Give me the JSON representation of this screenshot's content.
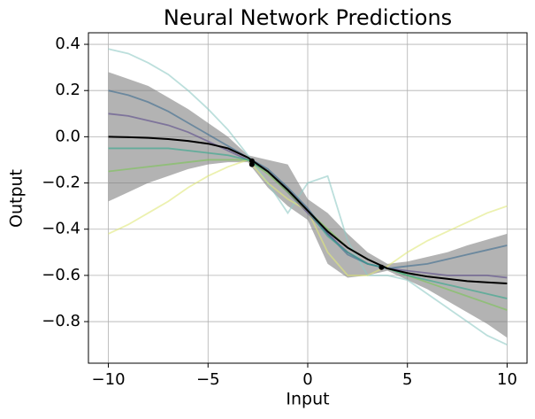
{
  "chart_data": {
    "type": "line",
    "title": "Neural Network Predictions",
    "x_label": "Input",
    "y_label": "Output",
    "x": [
      -10,
      -9,
      -8,
      -7,
      -6,
      -5,
      -4,
      -3,
      -2,
      -1,
      0,
      1,
      2,
      3,
      4,
      5,
      6,
      7,
      8,
      9,
      10
    ],
    "band": {
      "color": "#808080",
      "upper": [
        0.28,
        0.25,
        0.22,
        0.17,
        0.12,
        0.06,
        0.0,
        -0.08,
        -0.1,
        -0.12,
        -0.27,
        -0.33,
        -0.42,
        -0.5,
        -0.55,
        -0.54,
        -0.52,
        -0.5,
        -0.47,
        -0.445,
        -0.42
      ],
      "lower": [
        -0.28,
        -0.24,
        -0.2,
        -0.17,
        -0.14,
        -0.12,
        -0.11,
        -0.11,
        -0.22,
        -0.3,
        -0.36,
        -0.55,
        -0.61,
        -0.6,
        -0.58,
        -0.62,
        -0.66,
        -0.71,
        -0.76,
        -0.81,
        -0.87
      ]
    },
    "series": [
      {
        "color": "#8fc9c5",
        "values": [
          0.38,
          0.36,
          0.32,
          0.27,
          0.2,
          0.12,
          0.03,
          -0.08,
          -0.2,
          -0.33,
          -0.2,
          -0.17,
          -0.45,
          -0.6,
          -0.6,
          -0.62,
          -0.68,
          -0.74,
          -0.8,
          -0.86,
          -0.9
        ]
      },
      {
        "color": "#e0e87a",
        "values": [
          -0.42,
          -0.38,
          -0.33,
          -0.28,
          -0.22,
          -0.17,
          -0.13,
          -0.1,
          -0.2,
          -0.27,
          -0.32,
          -0.5,
          -0.6,
          -0.6,
          -0.56,
          -0.5,
          -0.45,
          -0.41,
          -0.37,
          -0.33,
          -0.3
        ]
      },
      {
        "color": "#5a4a8a",
        "values": [
          0.1,
          0.09,
          0.07,
          0.05,
          0.02,
          -0.02,
          -0.06,
          -0.1,
          -0.15,
          -0.24,
          -0.33,
          -0.42,
          -0.5,
          -0.55,
          -0.57,
          -0.58,
          -0.59,
          -0.6,
          -0.6,
          -0.6,
          -0.61
        ]
      },
      {
        "color": "#7ac453",
        "values": [
          -0.15,
          -0.14,
          -0.13,
          -0.12,
          -0.11,
          -0.1,
          -0.1,
          -0.1,
          -0.16,
          -0.24,
          -0.32,
          -0.4,
          -0.48,
          -0.53,
          -0.57,
          -0.6,
          -0.63,
          -0.66,
          -0.69,
          -0.72,
          -0.75
        ]
      },
      {
        "color": "#3b6b8f",
        "values": [
          0.2,
          0.18,
          0.15,
          0.11,
          0.06,
          0.01,
          -0.04,
          -0.09,
          -0.14,
          -0.22,
          -0.31,
          -0.42,
          -0.51,
          -0.55,
          -0.57,
          -0.56,
          -0.55,
          -0.53,
          -0.51,
          -0.49,
          -0.47
        ]
      },
      {
        "color": "#2fa68a",
        "values": [
          -0.05,
          -0.05,
          -0.05,
          -0.05,
          -0.06,
          -0.07,
          -0.08,
          -0.1,
          -0.15,
          -0.23,
          -0.32,
          -0.43,
          -0.5,
          -0.55,
          -0.57,
          -0.6,
          -0.62,
          -0.64,
          -0.66,
          -0.68,
          -0.7
        ]
      }
    ],
    "mean": {
      "color": "#000000",
      "values": [
        0.0,
        -0.002,
        -0.005,
        -0.01,
        -0.018,
        -0.03,
        -0.05,
        -0.09,
        -0.15,
        -0.23,
        -0.32,
        -0.41,
        -0.48,
        -0.53,
        -0.57,
        -0.59,
        -0.605,
        -0.615,
        -0.625,
        -0.63,
        -0.635
      ]
    },
    "points": {
      "color": "#000000",
      "x": [
        -2.8,
        -2.8,
        3.7
      ],
      "y": [
        -0.105,
        -0.12,
        -0.565
      ]
    },
    "xlim": [
      -11,
      11
    ],
    "ylim": [
      -0.98,
      0.45
    ],
    "xticks": [
      {
        "value": -10,
        "label": "−10"
      },
      {
        "value": -5,
        "label": "−5"
      },
      0,
      5,
      10
    ],
    "yticks": [
      {
        "value": -0.8,
        "label": "−0.8"
      },
      {
        "value": -0.6,
        "label": "−0.6"
      },
      {
        "value": -0.4,
        "label": "−0.4"
      },
      {
        "value": -0.2,
        "label": "−0.2"
      },
      {
        "value": 0,
        "label": "0.0"
      },
      0.2,
      0.4
    ],
    "grid": true
  }
}
